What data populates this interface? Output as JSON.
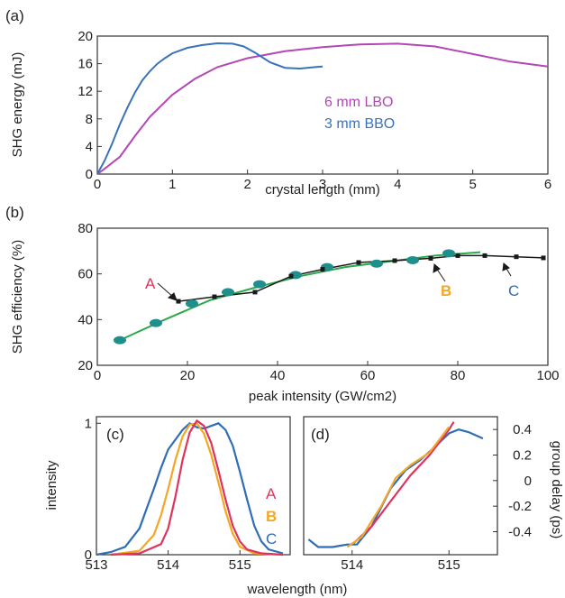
{
  "figure": {
    "panels": {
      "a": "(a)",
      "b": "(b)",
      "c": "(c)",
      "d": "(d)"
    },
    "shared_xlabel_cd": "wavelength (nm)"
  },
  "colors": {
    "lbo": "#b347b5",
    "bbo": "#3a73b8",
    "fit": "#2aaa4a",
    "black": "#1a1a1a",
    "marker": "#1e8f8a",
    "A": "#e0335c",
    "B": "#f5a623",
    "C": "#2f6db5",
    "d_orange": "#f0a830"
  },
  "chart_data": [
    {
      "id": "a",
      "type": "line",
      "xlabel": "crystal length (mm)",
      "ylabel": "SHG energy (mJ)",
      "xlim": [
        0,
        6
      ],
      "ylim": [
        0,
        20
      ],
      "xticks": [
        "0",
        "1",
        "2",
        "3",
        "4",
        "5",
        "6"
      ],
      "yticks": [
        "0",
        "4",
        "8",
        "12",
        "16",
        "20"
      ],
      "legend_position": "right",
      "series": [
        {
          "name": "6 mm LBO",
          "x": [
            0,
            0.1,
            0.3,
            0.5,
            0.7,
            1.0,
            1.3,
            1.6,
            2.0,
            2.5,
            3.0,
            3.5,
            4.0,
            4.5,
            5.0,
            5.5,
            6.0
          ],
          "y": [
            0,
            0.8,
            2.5,
            5.5,
            8.3,
            11.5,
            13.8,
            15.5,
            16.8,
            17.8,
            18.4,
            18.8,
            18.9,
            18.5,
            17.4,
            16.3,
            15.6
          ]
        },
        {
          "name": "3 mm BBO",
          "x": [
            0,
            0.1,
            0.2,
            0.3,
            0.4,
            0.5,
            0.6,
            0.7,
            0.8,
            0.9,
            1.0,
            1.2,
            1.4,
            1.6,
            1.8,
            1.95,
            2.1,
            2.3,
            2.5,
            2.7,
            2.9,
            3.0
          ],
          "y": [
            0,
            2.0,
            4.5,
            7.2,
            9.6,
            11.8,
            13.6,
            14.9,
            16.0,
            16.8,
            17.5,
            18.3,
            18.7,
            18.95,
            18.9,
            18.5,
            17.6,
            16.2,
            15.4,
            15.3,
            15.5,
            15.6
          ]
        }
      ]
    },
    {
      "id": "b",
      "type": "scatter",
      "xlabel": "peak intensity (GW/cm2)",
      "ylabel": "SHG efficiency (%)",
      "xlim": [
        0,
        100
      ],
      "ylim": [
        20,
        80
      ],
      "xticks": [
        "0",
        "20",
        "40",
        "60",
        "80",
        "100"
      ],
      "yticks": [
        "20",
        "40",
        "60",
        "80"
      ],
      "annotations": [
        "A",
        "B",
        "C"
      ],
      "series": [
        {
          "name": "",
          "x": [
            5,
            13,
            21,
            29,
            36,
            44,
            51,
            62,
            70,
            78
          ],
          "y": [
            31,
            38.5,
            47,
            52,
            55.5,
            59.5,
            63,
            64.5,
            66,
            69
          ]
        },
        {
          "name": "",
          "x": [
            5,
            15,
            25,
            35,
            45,
            55,
            65,
            75,
            85
          ],
          "y": [
            31,
            40,
            48.5,
            54,
            59,
            63,
            65.5,
            68,
            69.5
          ]
        },
        {
          "name": "",
          "x": [
            18,
            26,
            35,
            43,
            50,
            58,
            66,
            74,
            80,
            86,
            93,
            99
          ],
          "y": [
            48,
            50,
            52,
            59,
            62,
            65,
            65.8,
            66.8,
            68,
            68,
            67.5,
            67
          ]
        }
      ]
    },
    {
      "id": "c",
      "type": "line",
      "ylabel": "intensity",
      "xlim": [
        513,
        515.7
      ],
      "ylim": [
        0,
        1.05
      ],
      "xticks": [
        "513",
        "514",
        "515"
      ],
      "yticks": [
        "0",
        "1"
      ],
      "series": [
        {
          "name": "A",
          "x": [
            513.2,
            513.6,
            513.9,
            514.0,
            514.1,
            514.2,
            514.3,
            514.4,
            514.5,
            514.6,
            514.7,
            514.8,
            514.9,
            515.0,
            515.1,
            515.3,
            515.6
          ],
          "y": [
            0,
            0.01,
            0.08,
            0.2,
            0.44,
            0.72,
            0.93,
            1.02,
            0.98,
            0.85,
            0.64,
            0.42,
            0.22,
            0.1,
            0.04,
            0.01,
            0
          ]
        },
        {
          "name": "B",
          "x": [
            513.2,
            513.6,
            513.8,
            513.9,
            514.0,
            514.1,
            514.2,
            514.3,
            514.4,
            514.5,
            514.6,
            514.7,
            514.8,
            514.9,
            515.0,
            515.2,
            515.6
          ],
          "y": [
            0,
            0.03,
            0.15,
            0.3,
            0.5,
            0.72,
            0.9,
            0.99,
            1.0,
            0.92,
            0.76,
            0.55,
            0.33,
            0.16,
            0.06,
            0.01,
            0
          ]
        },
        {
          "name": "C",
          "x": [
            513.0,
            513.2,
            513.4,
            513.6,
            513.7,
            513.8,
            513.9,
            514.0,
            514.2,
            514.3,
            514.4,
            514.5,
            514.6,
            514.7,
            514.8,
            514.9,
            515.0,
            515.1,
            515.2,
            515.3,
            515.4,
            515.6
          ],
          "y": [
            0,
            0.02,
            0.06,
            0.2,
            0.35,
            0.5,
            0.66,
            0.8,
            0.95,
            1.0,
            0.97,
            0.96,
            0.98,
            1.0,
            0.95,
            0.83,
            0.63,
            0.42,
            0.22,
            0.1,
            0.04,
            0.01
          ]
        }
      ]
    },
    {
      "id": "d",
      "type": "line",
      "ylabel": "group delay (ps)",
      "xlim": [
        513.5,
        515.5
      ],
      "ylim": [
        -0.58,
        0.5
      ],
      "xticks": [
        "514",
        "515"
      ],
      "yticks": [
        "0.4",
        "0.2",
        "0",
        "-0.2",
        "-0.4"
      ],
      "series": [
        {
          "name": "A",
          "x": [
            514.0,
            514.2,
            514.4,
            514.6,
            514.8,
            515.0,
            515.05
          ],
          "y": [
            -0.5,
            -0.36,
            -0.16,
            0.04,
            0.2,
            0.4,
            0.46
          ]
        },
        {
          "name": "B",
          "x": [
            513.95,
            514.1,
            514.3,
            514.45,
            514.6,
            514.8,
            515.0
          ],
          "y": [
            -0.52,
            -0.44,
            -0.2,
            0.02,
            0.12,
            0.22,
            0.42
          ]
        },
        {
          "name": "C",
          "x": [
            513.55,
            513.65,
            513.8,
            513.95,
            514.05,
            514.2,
            514.4,
            514.55,
            514.7,
            514.85,
            515.0,
            515.1,
            515.2,
            515.35
          ],
          "y": [
            -0.46,
            -0.52,
            -0.52,
            -0.5,
            -0.5,
            -0.36,
            -0.06,
            0.08,
            0.16,
            0.26,
            0.37,
            0.4,
            0.38,
            0.33
          ]
        }
      ]
    }
  ]
}
